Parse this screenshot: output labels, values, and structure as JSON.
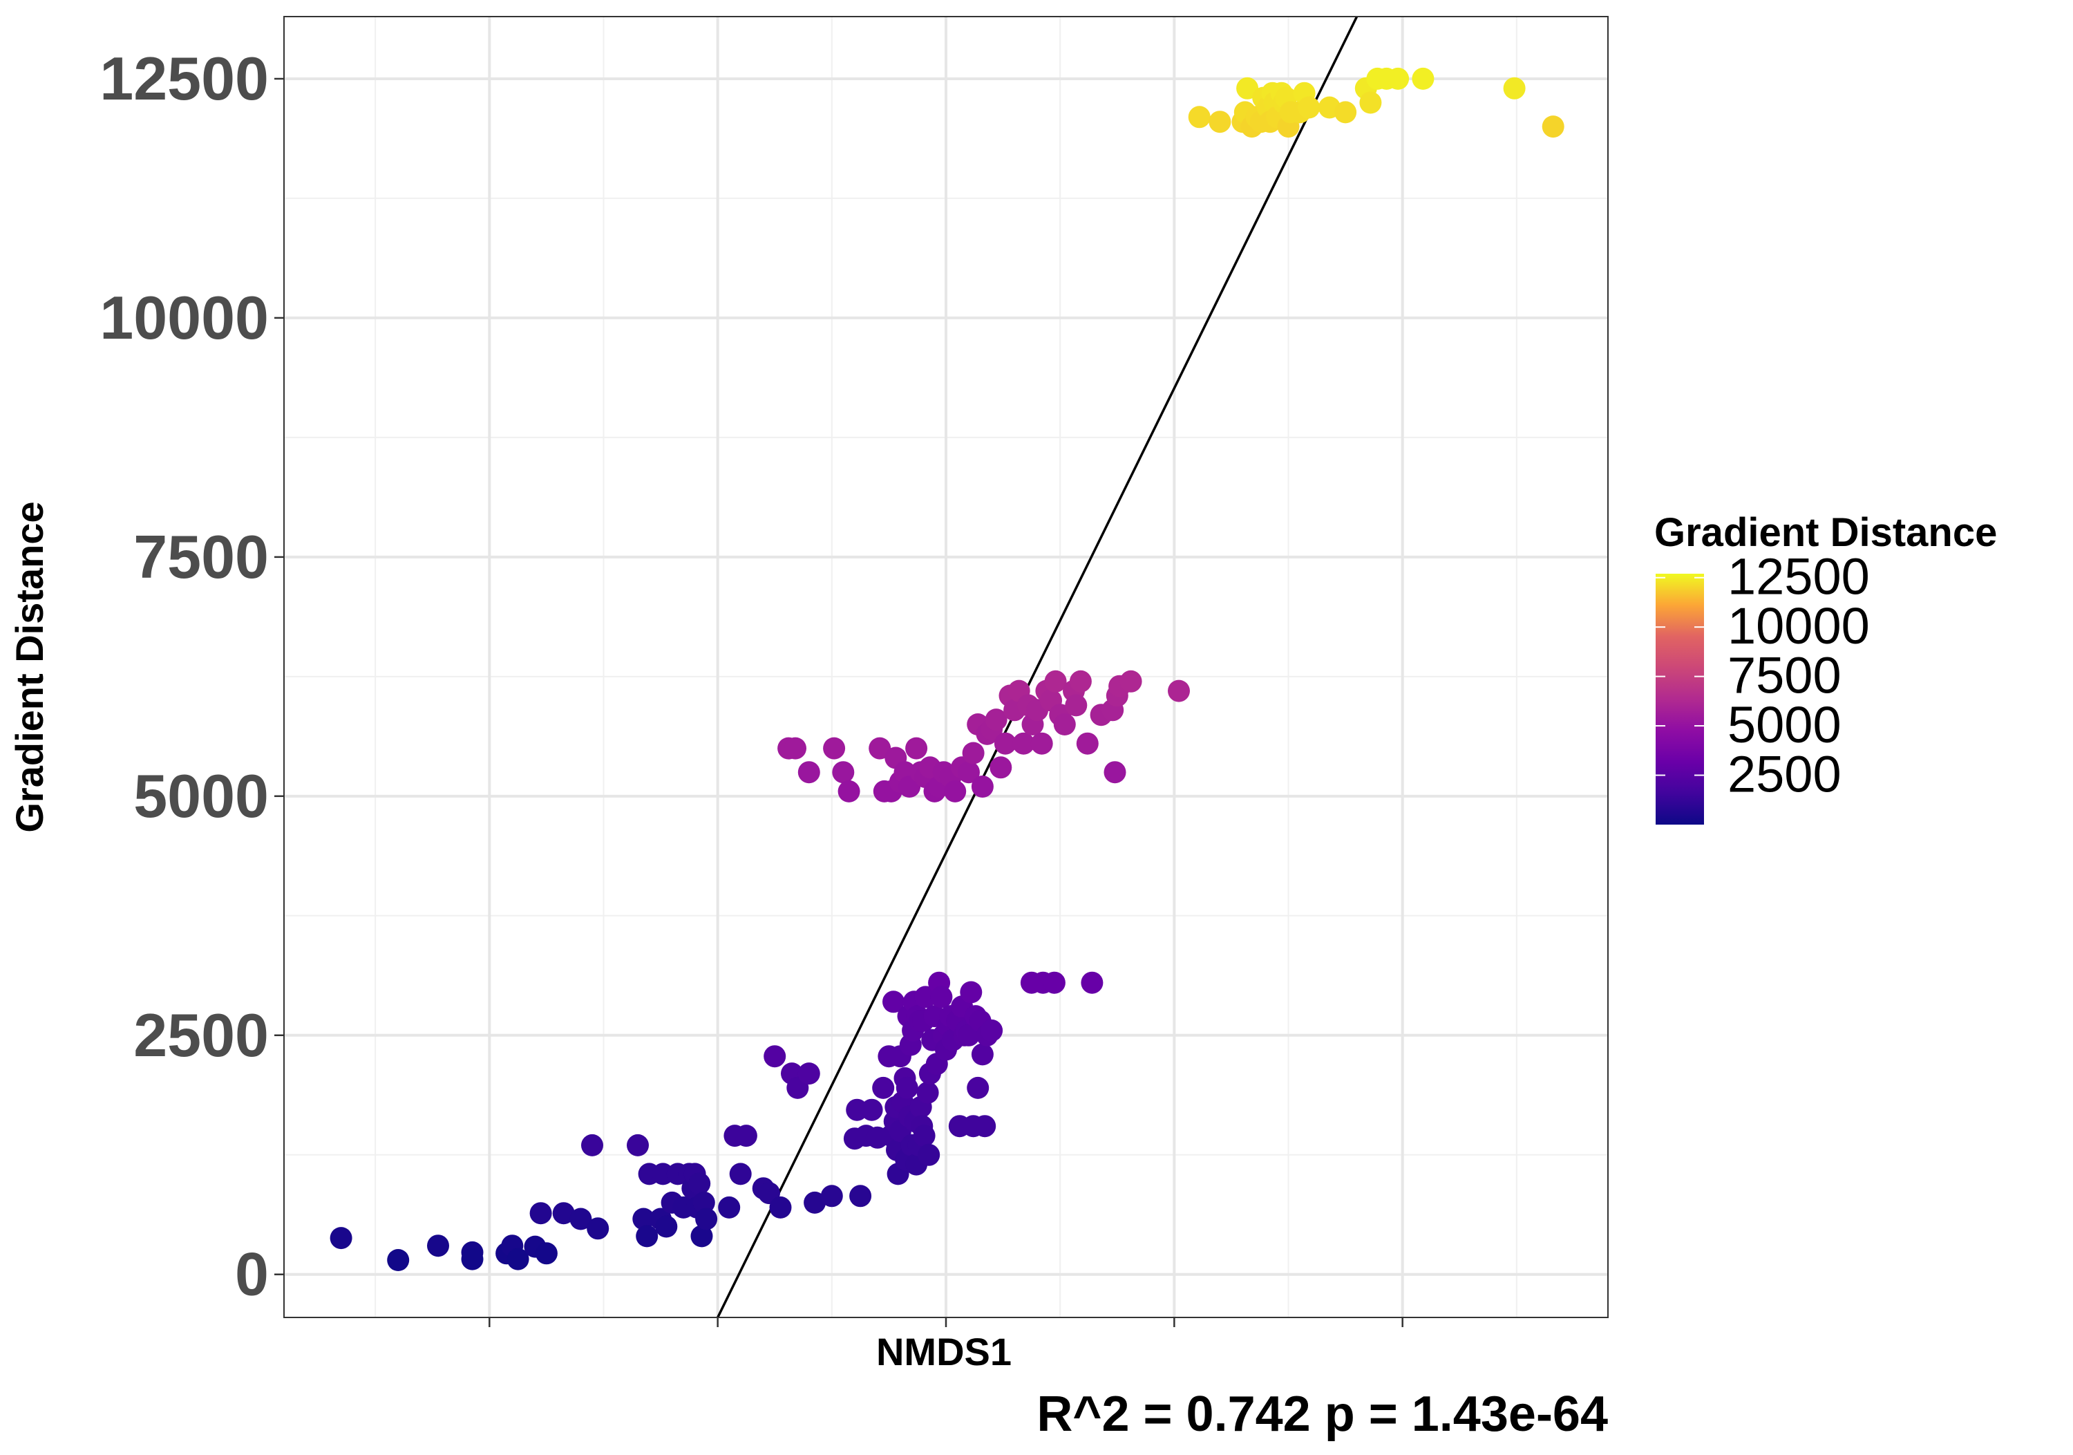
{
  "chart_data": {
    "type": "scatter",
    "xlabel": "NMDS1",
    "ylabel": "Gradient Distance",
    "x_tick_labels_shown": false,
    "x_ticks": [
      -0.6,
      -0.4,
      -0.2,
      0.0,
      0.2,
      0.4
    ],
    "xlim": [
      -0.58,
      0.58
    ],
    "y_ticks": [
      0,
      2500,
      5000,
      7500,
      10000,
      12500
    ],
    "ylim": [
      -450,
      13150
    ],
    "grid": true,
    "annotation": "R^2 =  0.742 p = 1.43e-64",
    "regression_line": {
      "p1": [
        -0.2,
        -450
      ],
      "p2": [
        0.36,
        13150
      ]
    },
    "colorbar": {
      "title": "Gradient Distance",
      "labels": [
        "12500",
        "10000",
        "7500",
        "5000",
        "2500"
      ],
      "tick_values": [
        12500,
        10000,
        7500,
        5000,
        2500
      ],
      "min": 0,
      "max": 12700,
      "colormap": "plasma",
      "placement": "right"
    },
    "points": [
      [
        -0.53,
        380
      ],
      [
        -0.48,
        150
      ],
      [
        -0.445,
        300
      ],
      [
        -0.415,
        230
      ],
      [
        -0.415,
        160
      ],
      [
        -0.385,
        220
      ],
      [
        -0.38,
        300
      ],
      [
        -0.375,
        160
      ],
      [
        -0.36,
        290
      ],
      [
        -0.355,
        640
      ],
      [
        -0.35,
        220
      ],
      [
        -0.335,
        640
      ],
      [
        -0.32,
        580
      ],
      [
        -0.31,
        1350
      ],
      [
        -0.305,
        480
      ],
      [
        -0.27,
        1350
      ],
      [
        -0.265,
        580
      ],
      [
        -0.262,
        400
      ],
      [
        -0.26,
        1050
      ],
      [
        -0.25,
        580
      ],
      [
        -0.248,
        1050
      ],
      [
        -0.245,
        500
      ],
      [
        -0.24,
        750
      ],
      [
        -0.235,
        1050
      ],
      [
        -0.23,
        700
      ],
      [
        -0.225,
        1050
      ],
      [
        -0.222,
        900
      ],
      [
        -0.22,
        1050
      ],
      [
        -0.218,
        700
      ],
      [
        -0.216,
        950
      ],
      [
        -0.214,
        400
      ],
      [
        -0.212,
        750
      ],
      [
        -0.21,
        580
      ],
      [
        -0.19,
        700
      ],
      [
        -0.185,
        1450
      ],
      [
        -0.18,
        1050
      ],
      [
        -0.175,
        1450
      ],
      [
        -0.16,
        900
      ],
      [
        -0.155,
        850
      ],
      [
        -0.15,
        2280
      ],
      [
        -0.145,
        700
      ],
      [
        -0.135,
        2100
      ],
      [
        -0.13,
        1950
      ],
      [
        -0.12,
        2100
      ],
      [
        -0.115,
        750
      ],
      [
        -0.1,
        820
      ],
      [
        -0.08,
        1420
      ],
      [
        -0.078,
        1720
      ],
      [
        -0.075,
        820
      ],
      [
        -0.07,
        1450
      ],
      [
        -0.065,
        1720
      ],
      [
        -0.06,
        1430
      ],
      [
        -0.055,
        1950
      ],
      [
        -0.05,
        2280
      ],
      [
        -0.048,
        1450
      ],
      [
        -0.046,
        2850
      ],
      [
        -0.045,
        1600
      ],
      [
        -0.044,
        1750
      ],
      [
        -0.043,
        1300
      ],
      [
        -0.042,
        1050
      ],
      [
        -0.04,
        2280
      ],
      [
        -0.04,
        1500
      ],
      [
        -0.038,
        1800
      ],
      [
        -0.036,
        2050
      ],
      [
        -0.035,
        1200
      ],
      [
        -0.034,
        1950
      ],
      [
        -0.033,
        2700
      ],
      [
        -0.032,
        1650
      ],
      [
        -0.031,
        2400
      ],
      [
        -0.03,
        1350
      ],
      [
        -0.029,
        2550
      ],
      [
        -0.028,
        2850
      ],
      [
        -0.027,
        1600
      ],
      [
        -0.026,
        1150
      ],
      [
        -0.025,
        2700
      ],
      [
        -0.024,
        1350
      ],
      [
        -0.023,
        2650
      ],
      [
        -0.022,
        1750
      ],
      [
        -0.021,
        1550
      ],
      [
        -0.02,
        2650
      ],
      [
        -0.019,
        1450
      ],
      [
        -0.018,
        2900
      ],
      [
        -0.016,
        1900
      ],
      [
        -0.015,
        1250
      ],
      [
        -0.014,
        2100
      ],
      [
        -0.012,
        2450
      ],
      [
        -0.01,
        2700
      ],
      [
        -0.008,
        2200
      ],
      [
        -0.006,
        3050
      ],
      [
        -0.004,
        2900
      ],
      [
        -0.002,
        2500
      ],
      [
        0.0,
        2350
      ],
      [
        0.002,
        2600
      ],
      [
        0.004,
        2700
      ],
      [
        0.006,
        2450
      ],
      [
        0.01,
        2650
      ],
      [
        0.012,
        1550
      ],
      [
        0.014,
        2800
      ],
      [
        0.016,
        2500
      ],
      [
        0.018,
        2550
      ],
      [
        0.02,
        2500
      ],
      [
        0.022,
        2950
      ],
      [
        0.024,
        1550
      ],
      [
        0.026,
        2700
      ],
      [
        0.028,
        1950
      ],
      [
        0.03,
        2650
      ],
      [
        0.032,
        2300
      ],
      [
        0.034,
        1550
      ],
      [
        0.036,
        2500
      ],
      [
        0.04,
        2550
      ],
      [
        0.075,
        3050
      ],
      [
        0.085,
        3050
      ],
      [
        0.095,
        3050
      ],
      [
        0.128,
        3050
      ],
      [
        -0.138,
        5500
      ],
      [
        -0.132,
        5500
      ],
      [
        -0.12,
        5250
      ],
      [
        -0.098,
        5500
      ],
      [
        -0.09,
        5250
      ],
      [
        -0.085,
        5050
      ],
      [
        -0.058,
        5500
      ],
      [
        -0.054,
        5050
      ],
      [
        -0.048,
        5050
      ],
      [
        -0.044,
        5400
      ],
      [
        -0.04,
        5150
      ],
      [
        -0.036,
        5250
      ],
      [
        -0.032,
        5100
      ],
      [
        -0.026,
        5500
      ],
      [
        -0.022,
        5250
      ],
      [
        -0.018,
        5200
      ],
      [
        -0.014,
        5300
      ],
      [
        -0.01,
        5050
      ],
      [
        -0.006,
        5100
      ],
      [
        -0.002,
        5250
      ],
      [
        0.004,
        5200
      ],
      [
        0.008,
        5050
      ],
      [
        0.014,
        5300
      ],
      [
        0.02,
        5250
      ],
      [
        0.024,
        5450
      ],
      [
        0.028,
        5750
      ],
      [
        0.032,
        5100
      ],
      [
        0.036,
        5650
      ],
      [
        0.04,
        5700
      ],
      [
        0.044,
        5800
      ],
      [
        0.048,
        5300
      ],
      [
        0.052,
        5550
      ],
      [
        0.056,
        6050
      ],
      [
        0.06,
        5900
      ],
      [
        0.064,
        6100
      ],
      [
        0.068,
        5550
      ],
      [
        0.072,
        5950
      ],
      [
        0.076,
        5750
      ],
      [
        0.08,
        5900
      ],
      [
        0.084,
        5550
      ],
      [
        0.088,
        6100
      ],
      [
        0.092,
        6000
      ],
      [
        0.096,
        6200
      ],
      [
        0.1,
        5850
      ],
      [
        0.104,
        5750
      ],
      [
        0.112,
        6100
      ],
      [
        0.114,
        5950
      ],
      [
        0.118,
        6200
      ],
      [
        0.124,
        5550
      ],
      [
        0.136,
        5850
      ],
      [
        0.146,
        5900
      ],
      [
        0.148,
        5250
      ],
      [
        0.15,
        6050
      ],
      [
        0.152,
        6150
      ],
      [
        0.162,
        6200
      ],
      [
        0.204,
        6100
      ],
      [
        0.222,
        12100
      ],
      [
        0.24,
        12050
      ],
      [
        0.26,
        12050
      ],
      [
        0.262,
        12150
      ],
      [
        0.264,
        12400
      ],
      [
        0.268,
        12000
      ],
      [
        0.272,
        12100
      ],
      [
        0.276,
        12050
      ],
      [
        0.278,
        12300
      ],
      [
        0.282,
        12200
      ],
      [
        0.284,
        12050
      ],
      [
        0.286,
        12350
      ],
      [
        0.288,
        12250
      ],
      [
        0.29,
        12100
      ],
      [
        0.294,
        12350
      ],
      [
        0.296,
        12250
      ],
      [
        0.298,
        12300
      ],
      [
        0.3,
        12000
      ],
      [
        0.302,
        12150
      ],
      [
        0.31,
        12150
      ],
      [
        0.314,
        12350
      ],
      [
        0.318,
        12200
      ],
      [
        0.336,
        12200
      ],
      [
        0.35,
        12150
      ],
      [
        0.368,
        12400
      ],
      [
        0.372,
        12250
      ],
      [
        0.378,
        12500
      ],
      [
        0.386,
        12500
      ],
      [
        0.396,
        12500
      ],
      [
        0.418,
        12500
      ],
      [
        0.498,
        12400
      ],
      [
        0.532,
        12000
      ]
    ]
  }
}
